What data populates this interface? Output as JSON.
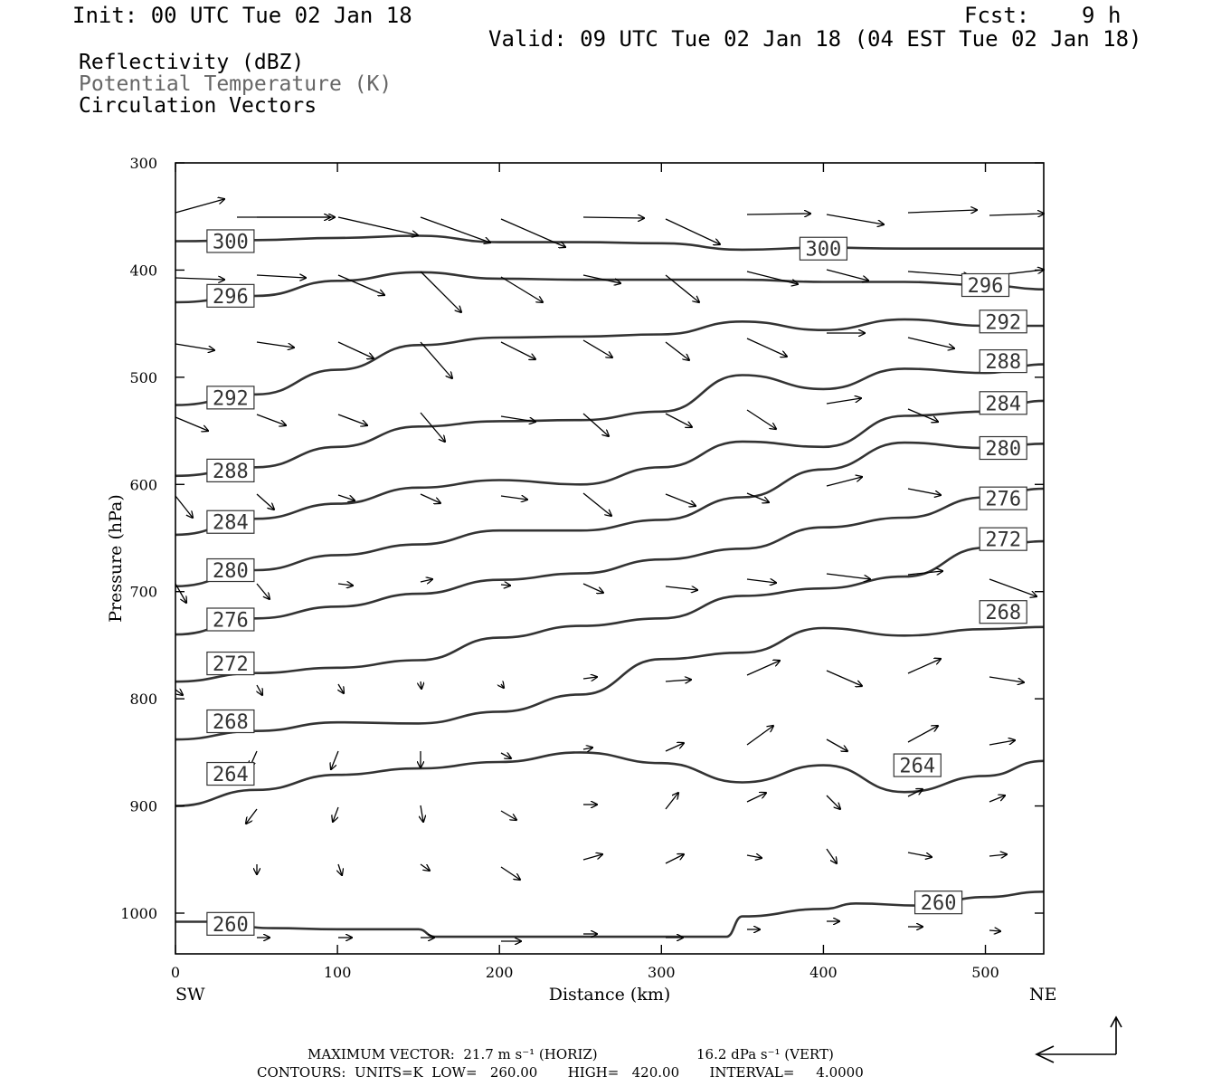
{
  "header": {
    "init": "Init: 00 UTC Tue 02 Jan 18",
    "fcst": "Fcst:    9 h",
    "valid": "Valid: 09 UTC Tue 02 Jan 18 (04 EST Tue 02 Jan 18)"
  },
  "legend": {
    "line1": "Reflectivity (dBZ)",
    "line2": "Potential Temperature (K)",
    "line3": "Circulation Vectors"
  },
  "colors": {
    "background": "#ffffff",
    "contour": "#333333",
    "theta_legend": "#666666",
    "vectors": "#000000"
  },
  "chart_data": {
    "type": "line",
    "xlabel": "Distance (km)",
    "ylabel": "Pressure (hPa)",
    "xlim": [
      0,
      536
    ],
    "ylim": [
      300,
      1038
    ],
    "y_inverted": true,
    "xticks": [
      0,
      100,
      200,
      300,
      400,
      500
    ],
    "yticks": [
      300,
      400,
      500,
      600,
      700,
      800,
      900,
      1000
    ],
    "left_endpoint": "SW",
    "right_endpoint": "NE",
    "grid": false,
    "series": [
      {
        "name": "300",
        "x": [
          0,
          50,
          100,
          150,
          200,
          250,
          300,
          350,
          400,
          450,
          500,
          536
        ],
        "y": [
          373,
          372,
          370,
          368,
          374,
          374,
          375,
          381,
          379,
          380,
          380,
          380
        ],
        "label_positions": [
          [
            34,
            373
          ],
          [
            400,
            380
          ]
        ]
      },
      {
        "name": "296",
        "x": [
          0,
          50,
          100,
          150,
          200,
          250,
          300,
          350,
          400,
          450,
          500,
          536
        ],
        "y": [
          430,
          424,
          410,
          402,
          408,
          409,
          409,
          409,
          411,
          411,
          414,
          418
        ],
        "label_positions": [
          [
            34,
            424
          ],
          [
            500,
            414
          ]
        ]
      },
      {
        "name": "292",
        "x": [
          0,
          50,
          100,
          150,
          200,
          250,
          300,
          350,
          400,
          450,
          500,
          536
        ],
        "y": [
          526,
          516,
          493,
          470,
          463,
          462,
          460,
          448,
          456,
          446,
          452,
          452
        ],
        "label_positions": [
          [
            34,
            519
          ],
          [
            511,
            448
          ]
        ]
      },
      {
        "name": "288",
        "x": [
          0,
          50,
          100,
          150,
          200,
          250,
          300,
          350,
          400,
          450,
          500,
          536
        ],
        "y": [
          592,
          584,
          565,
          546,
          541,
          540,
          532,
          498,
          511,
          492,
          496,
          488
        ],
        "label_positions": [
          [
            34,
            587
          ],
          [
            511,
            485
          ]
        ]
      },
      {
        "name": "284",
        "x": [
          0,
          50,
          100,
          150,
          200,
          250,
          300,
          350,
          400,
          450,
          500,
          536
        ],
        "y": [
          647,
          632,
          618,
          603,
          596,
          600,
          584,
          560,
          565,
          536,
          532,
          522
        ],
        "label_positions": [
          [
            34,
            635
          ],
          [
            511,
            524
          ]
        ]
      },
      {
        "name": "280",
        "x": [
          0,
          50,
          100,
          150,
          200,
          250,
          300,
          350,
          400,
          450,
          500,
          536
        ],
        "y": [
          695,
          680,
          666,
          656,
          643,
          643,
          633,
          612,
          586,
          561,
          566,
          562
        ],
        "label_positions": [
          [
            34,
            680
          ],
          [
            511,
            566
          ]
        ]
      },
      {
        "name": "276",
        "x": [
          0,
          50,
          100,
          150,
          200,
          250,
          300,
          350,
          400,
          450,
          500,
          536
        ],
        "y": [
          740,
          725,
          714,
          702,
          689,
          683,
          670,
          660,
          640,
          631,
          612,
          604
        ],
        "label_positions": [
          [
            34,
            726
          ],
          [
            511,
            613
          ]
        ]
      },
      {
        "name": "272",
        "x": [
          0,
          50,
          100,
          150,
          200,
          250,
          300,
          350,
          400,
          450,
          500,
          536
        ],
        "y": [
          784,
          776,
          771,
          764,
          743,
          732,
          725,
          704,
          697,
          686,
          659,
          653
        ],
        "label_positions": [
          [
            34,
            767
          ],
          [
            511,
            651
          ]
        ]
      },
      {
        "name": "268",
        "x": [
          0,
          50,
          100,
          150,
          200,
          250,
          300,
          350,
          400,
          450,
          500,
          536
        ],
        "y": [
          838,
          830,
          822,
          823,
          812,
          796,
          763,
          757,
          734,
          741,
          735,
          733
        ],
        "label_positions": [
          [
            34,
            821
          ],
          [
            511,
            719
          ]
        ]
      },
      {
        "name": "264",
        "x": [
          0,
          50,
          100,
          150,
          200,
          250,
          300,
          350,
          400,
          450,
          500,
          536
        ],
        "y": [
          900,
          885,
          871,
          865,
          859,
          850,
          860,
          878,
          862,
          887,
          872,
          858
        ],
        "label_positions": [
          [
            34,
            870
          ],
          [
            458,
            862
          ]
        ]
      },
      {
        "name": "260",
        "x": [
          0,
          20,
          60,
          100,
          150,
          160,
          340,
          350,
          400,
          420,
          460,
          500,
          536
        ],
        "y": [
          1008,
          1008,
          1014,
          1015,
          1015,
          1022,
          1022,
          1003,
          996,
          991,
          993,
          985,
          980
        ],
        "label_positions": [
          [
            34,
            1010
          ],
          [
            471,
            990
          ]
        ]
      }
    ],
    "annotations": {
      "max_vector": "MAXIMUM VECTOR:  21.7 m s⁻¹ (HORIZ)",
      "max_vector_vert": "16.2 dPa s⁻¹ (VERT)",
      "contours": "CONTOURS:  UNITS=K  LOW=   260.00       HIGH=   420.00       INTERVAL=     4.0000"
    }
  }
}
